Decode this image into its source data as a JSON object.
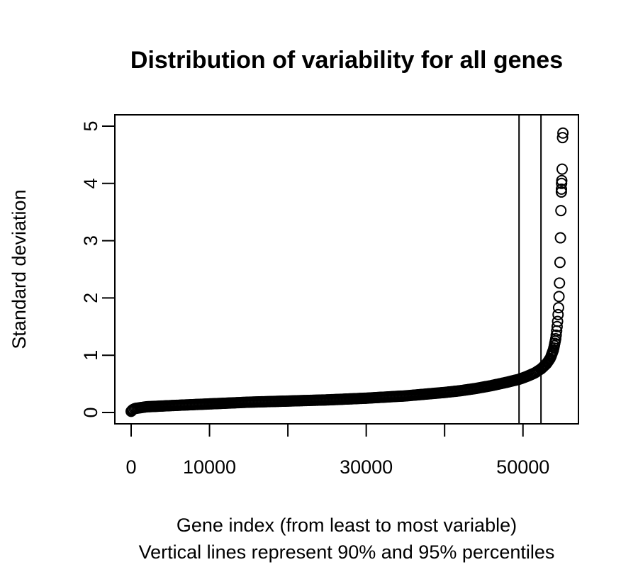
{
  "chart_data": {
    "type": "scatter",
    "title": "Distribution of variability for all genes",
    "xlabel": "Gene index (from least to most variable)",
    "xlabel_sub": "Vertical lines represent 90% and 95% percentiles",
    "ylabel": "Standard deviation",
    "xlim": [
      0,
      57000
    ],
    "ylim": [
      0,
      5
    ],
    "x_ticks": [
      0,
      10000,
      20000,
      30000,
      40000,
      50000
    ],
    "x_tick_labels": [
      "0",
      "10000",
      "",
      "30000",
      "",
      "50000"
    ],
    "y_ticks": [
      0,
      1,
      2,
      3,
      4,
      5
    ],
    "y_tick_labels": [
      "0",
      "1",
      "2",
      "3",
      "4",
      "5"
    ],
    "vlines": [
      {
        "name": "90% percentile",
        "x": 49500
      },
      {
        "name": "95% percentile",
        "x": 52300
      }
    ],
    "series": [
      {
        "marker": "open-circle",
        "x": [
          0,
          200,
          500,
          1000,
          2000,
          5000,
          10000,
          15000,
          20000,
          25000,
          30000,
          35000,
          40000,
          42000,
          44000,
          46000,
          48000,
          49500,
          50500,
          51500,
          52300,
          53000,
          53500,
          53900,
          54200,
          54400,
          54550,
          54650,
          54700,
          54750,
          54780,
          54800,
          54830,
          54850,
          54870,
          54890,
          54910,
          54930,
          54950,
          55000,
          55050,
          55100
        ],
        "y": [
          0.02,
          0.05,
          0.07,
          0.08,
          0.1,
          0.12,
          0.15,
          0.18,
          0.2,
          0.22,
          0.25,
          0.29,
          0.35,
          0.38,
          0.42,
          0.47,
          0.53,
          0.58,
          0.63,
          0.69,
          0.76,
          0.85,
          0.95,
          1.1,
          1.3,
          1.55,
          1.85,
          2.2,
          2.5,
          2.8,
          3.05,
          3.25,
          3.45,
          3.6,
          3.72,
          3.8,
          3.9,
          4.0,
          4.05,
          4.25,
          4.8,
          4.88
        ]
      }
    ],
    "grid": false,
    "legend": "none"
  }
}
